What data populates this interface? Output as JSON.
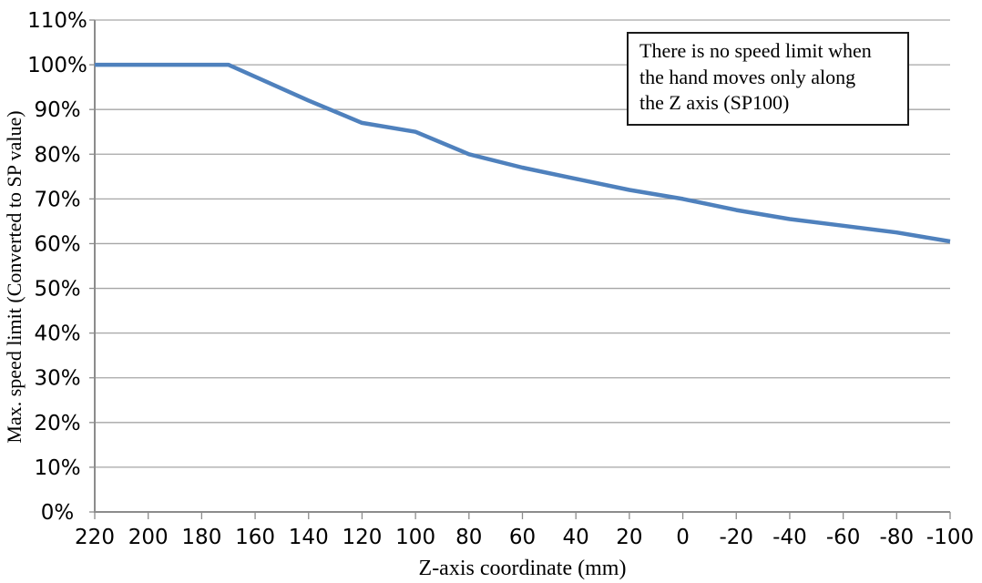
{
  "chart_data": {
    "type": "line",
    "title": "",
    "xlabel": "Z-axis coordinate (mm)",
    "ylabel": "Max. speed limit (Converted to SP value)",
    "xlim": [
      220,
      -100
    ],
    "ylim": [
      0,
      110
    ],
    "x_ticks": [
      220,
      200,
      180,
      160,
      140,
      120,
      100,
      80,
      60,
      40,
      20,
      0,
      -20,
      -40,
      -60,
      -80,
      -100
    ],
    "y_ticks": [
      0,
      10,
      20,
      30,
      40,
      50,
      60,
      70,
      80,
      90,
      100,
      110
    ],
    "y_tick_suffix": "%",
    "grid": "horizontal-major",
    "legend": "none",
    "series": [
      {
        "name": "Max. speed limit vs Z-axis coordinate",
        "color": "#4F81BD",
        "points": [
          [
            220,
            100
          ],
          [
            170,
            100
          ],
          [
            140,
            92
          ],
          [
            120,
            87
          ],
          [
            100,
            85
          ],
          [
            80,
            80
          ],
          [
            60,
            77
          ],
          [
            40,
            74.5
          ],
          [
            20,
            72
          ],
          [
            0,
            70
          ],
          [
            -20,
            67.5
          ],
          [
            -40,
            65.5
          ],
          [
            -60,
            64
          ],
          [
            -80,
            62.5
          ],
          [
            -100,
            60.5
          ]
        ]
      }
    ],
    "annotation": {
      "text": "There is no speed limit when\nthe hand moves only along\nthe Z axis (SP100)"
    },
    "colors": {
      "gridline": "#A6A6A6",
      "axis": "#8C8C8C",
      "tick_text": "#000000",
      "annotation_border": "#1A1A1A",
      "background": "#FFFFFF"
    }
  }
}
